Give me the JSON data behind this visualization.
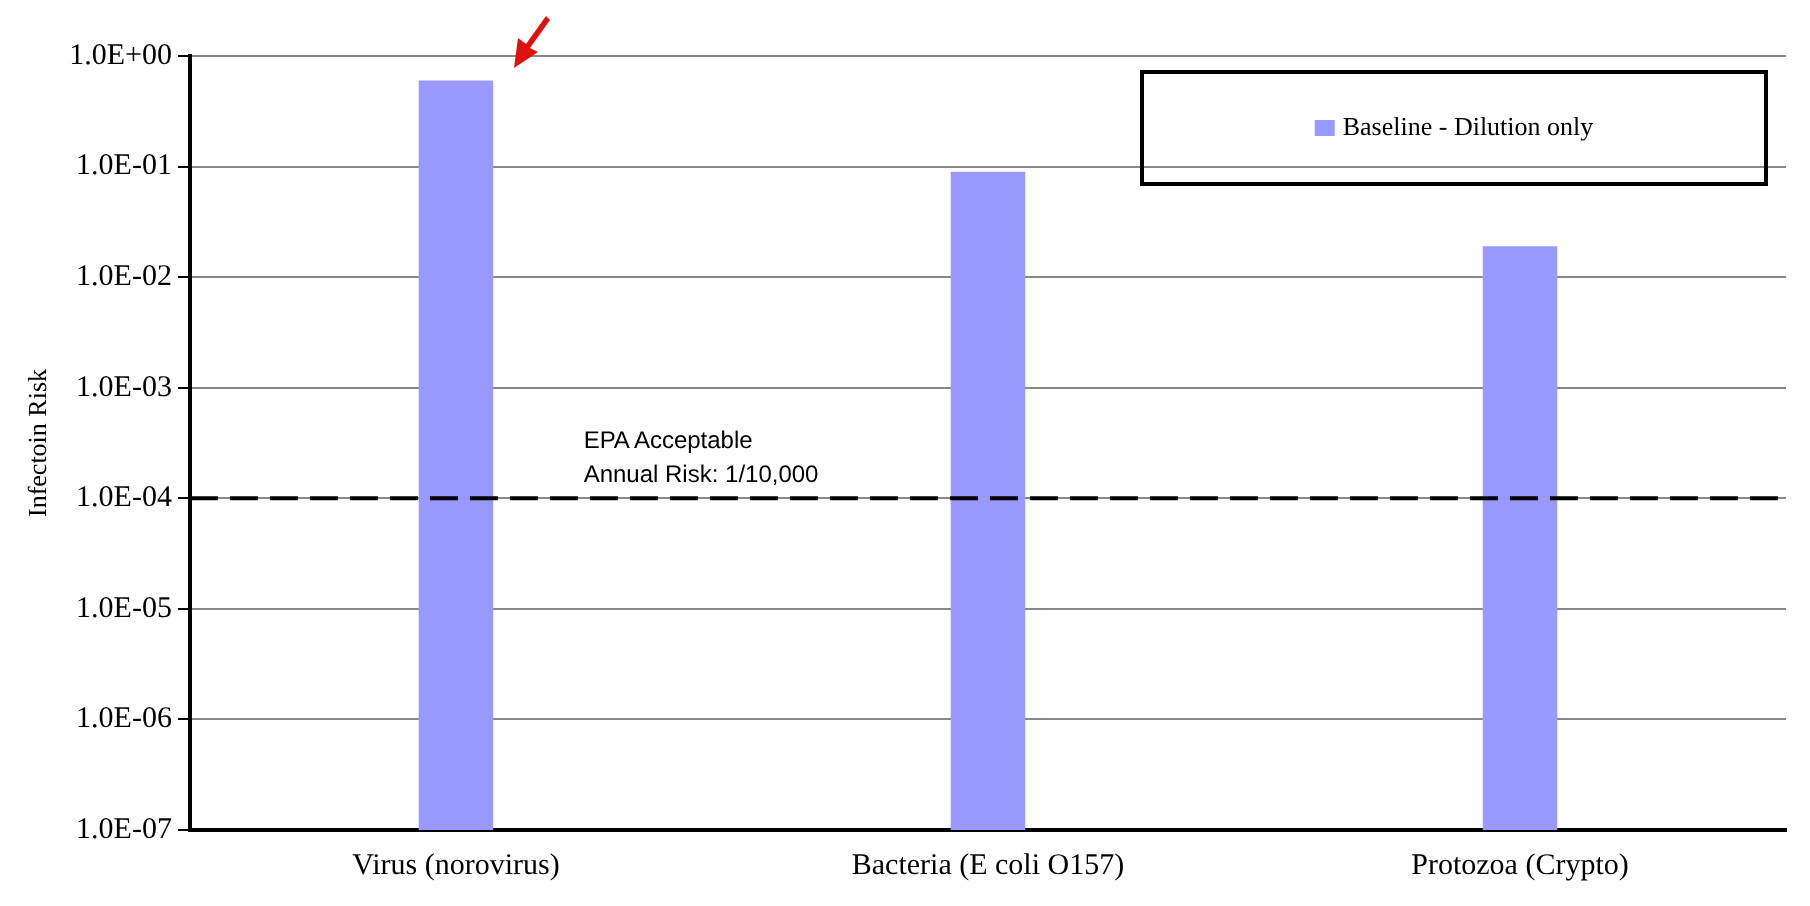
{
  "chart_data": {
    "type": "bar",
    "ylabel": "Infectoin Risk",
    "categories": [
      "Virus (norovirus)",
      "Bacteria (E coli O157)",
      "Protozoa (Crypto)"
    ],
    "series": [
      {
        "name": "Baseline - Dilution only",
        "color": "#9999ff",
        "values": [
          0.6,
          0.09,
          0.019
        ]
      }
    ],
    "log": "y",
    "ylim": [
      1e-07,
      1
    ],
    "yticks": [
      {
        "value": 1,
        "label": "1.0E+00"
      },
      {
        "value": 0.1,
        "label": "1.0E-01"
      },
      {
        "value": 0.01,
        "label": "1.0E-02"
      },
      {
        "value": 0.001,
        "label": "1.0E-03"
      },
      {
        "value": 0.0001,
        "label": "1.0E-04"
      },
      {
        "value": 1e-05,
        "label": "1.0E-05"
      },
      {
        "value": 1e-06,
        "label": "1.0E-06"
      },
      {
        "value": 1e-07,
        "label": "1.0E-07"
      }
    ],
    "ref_lines": [
      {
        "axis": "y",
        "value": 0.0001,
        "color": "#000000",
        "line_style": "dashed"
      }
    ],
    "annotations": [
      {
        "text": "EPA Acceptable Annual Risk: 1/10,000",
        "y": 0.0001
      }
    ],
    "grid": "y",
    "legend": "top right"
  }
}
